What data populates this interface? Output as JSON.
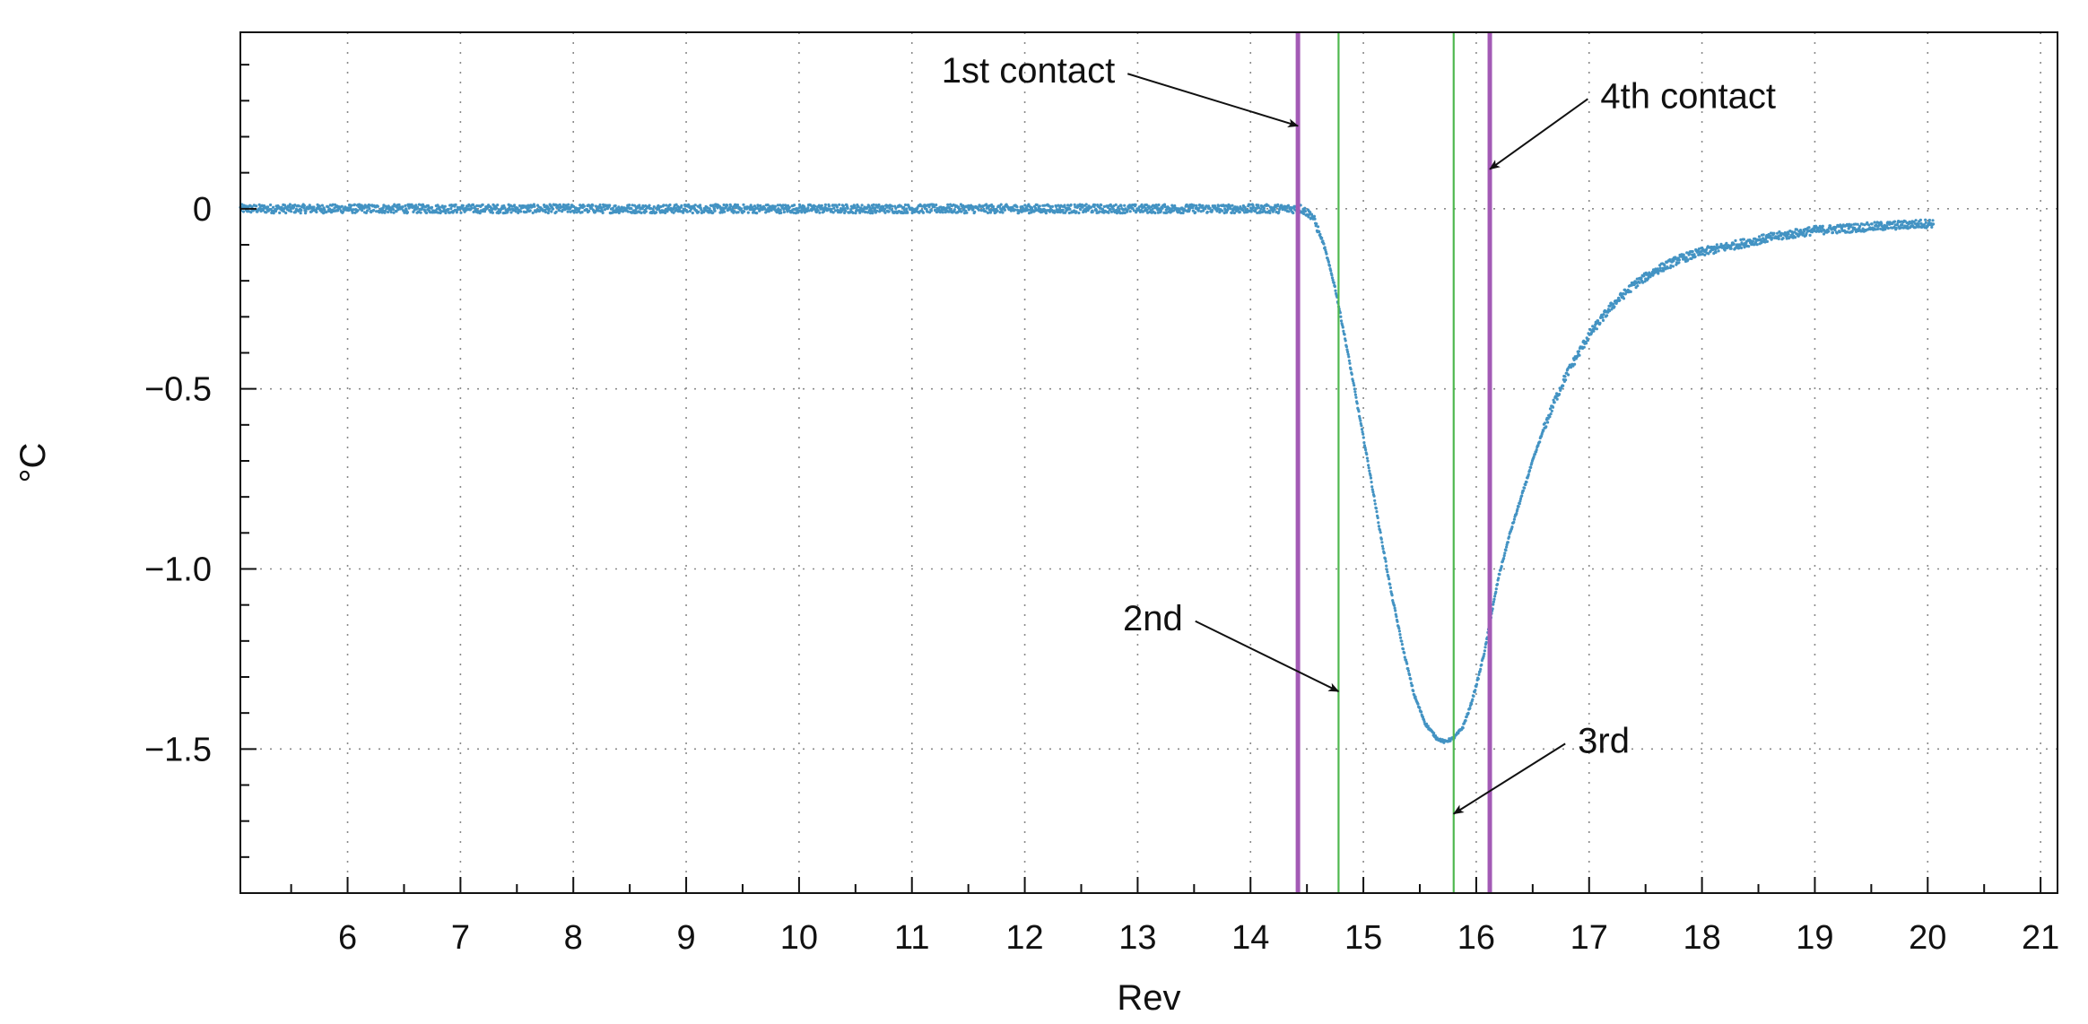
{
  "chart_data": {
    "type": "scatter",
    "title": "",
    "xlabel": "Rev",
    "ylabel": "°C",
    "xlim": [
      5.05,
      21.15
    ],
    "ylim": [
      -1.9,
      0.49
    ],
    "grid": true,
    "x_ticks": [
      6,
      7,
      8,
      9,
      10,
      11,
      12,
      13,
      14,
      15,
      16,
      17,
      18,
      19,
      20,
      21
    ],
    "x_tick_labels": [
      "6",
      "7",
      "8",
      "9",
      "10",
      "11",
      "12",
      "13",
      "14",
      "15",
      "16",
      "17",
      "18",
      "19",
      "20",
      "21"
    ],
    "y_ticks": [
      0,
      -0.5,
      -1.0,
      -1.5
    ],
    "y_tick_labels": [
      "0",
      "−0.5",
      "−1.0",
      "−1.5"
    ],
    "series": [
      {
        "color": "#4393c3",
        "x": [
          5.05,
          5.5,
          6.0,
          6.5,
          7.0,
          7.5,
          8.0,
          8.5,
          9.0,
          9.5,
          10.0,
          10.5,
          11.0,
          11.5,
          12.0,
          12.5,
          13.0,
          13.5,
          14.0,
          14.3,
          14.45,
          14.55,
          14.65,
          14.75,
          14.85,
          14.95,
          15.05,
          15.15,
          15.25,
          15.35,
          15.45,
          15.55,
          15.65,
          15.72,
          15.8,
          15.88,
          15.95,
          16.02,
          16.08,
          16.12,
          16.2,
          16.3,
          16.4,
          16.5,
          16.6,
          16.7,
          16.8,
          17.0,
          17.2,
          17.4,
          17.6,
          17.8,
          18.0,
          18.3,
          18.6,
          19.0,
          19.5,
          20.05
        ],
        "y": [
          0.0,
          0.0,
          0.0,
          0.0,
          0.0,
          0.0,
          0.0,
          0.0,
          0.0,
          0.0,
          0.0,
          0.0,
          0.0,
          0.0,
          0.0,
          0.0,
          0.0,
          0.0,
          0.0,
          0.0,
          0.0,
          -0.02,
          -0.1,
          -0.22,
          -0.38,
          -0.55,
          -0.72,
          -0.9,
          -1.07,
          -1.22,
          -1.35,
          -1.43,
          -1.47,
          -1.48,
          -1.47,
          -1.44,
          -1.38,
          -1.3,
          -1.22,
          -1.15,
          -1.02,
          -0.9,
          -0.8,
          -0.7,
          -0.61,
          -0.53,
          -0.46,
          -0.35,
          -0.27,
          -0.21,
          -0.17,
          -0.14,
          -0.12,
          -0.1,
          -0.08,
          -0.06,
          -0.05,
          -0.04
        ]
      }
    ],
    "vertical_lines": [
      {
        "x": 14.42,
        "color": "#a35ab5",
        "weight": "thick"
      },
      {
        "x": 14.78,
        "color": "#4fb84f",
        "weight": "thin"
      },
      {
        "x": 15.8,
        "color": "#4fb84f",
        "weight": "thin"
      },
      {
        "x": 16.12,
        "color": "#a35ab5",
        "weight": "thick"
      }
    ],
    "annotations": [
      {
        "text": "1st contact",
        "text_at": {
          "x": 12.8,
          "y": 0.35
        },
        "arrow_to": {
          "x": 14.42,
          "y": 0.23
        },
        "anchor": "end"
      },
      {
        "text": "4th contact",
        "text_at": {
          "x": 17.1,
          "y": 0.28
        },
        "arrow_to": {
          "x": 16.12,
          "y": 0.11
        },
        "anchor": "start"
      },
      {
        "text": "2nd",
        "text_at": {
          "x": 13.4,
          "y": -1.17
        },
        "arrow_to": {
          "x": 14.78,
          "y": -1.34
        },
        "anchor": "end"
      },
      {
        "text": "3rd",
        "text_at": {
          "x": 16.9,
          "y": -1.51
        },
        "arrow_to": {
          "x": 15.8,
          "y": -1.68
        },
        "anchor": "start"
      }
    ]
  }
}
